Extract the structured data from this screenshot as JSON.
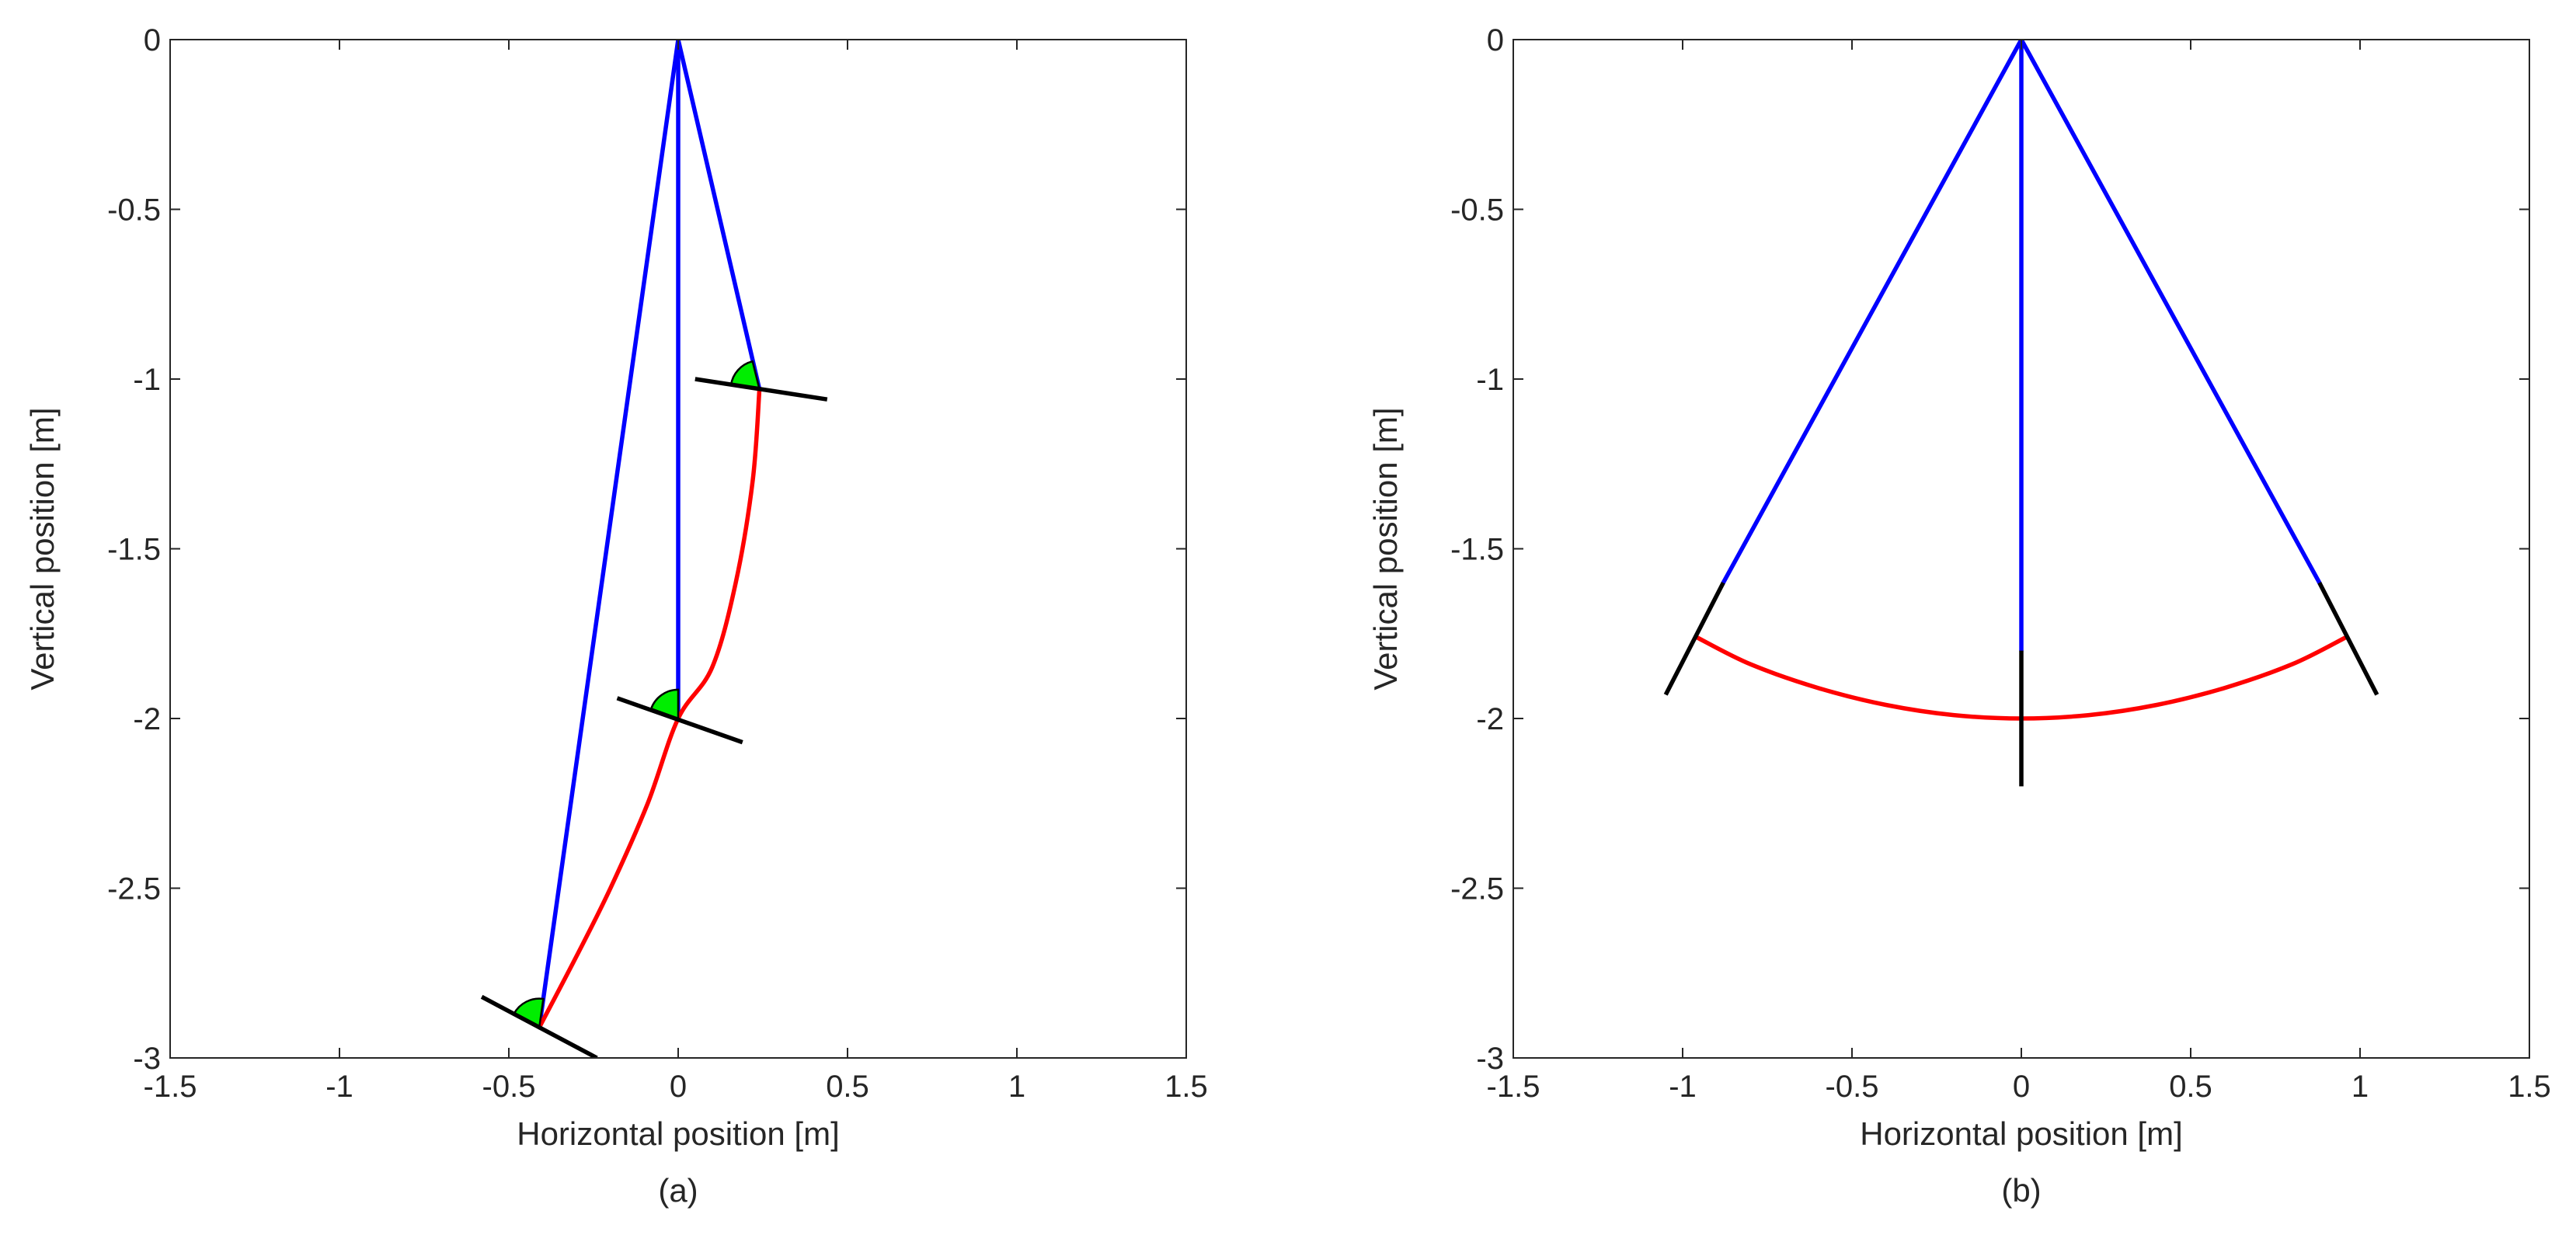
{
  "chart_data": [
    {
      "type": "line",
      "panel_label": "(a)",
      "xlabel": "Horizontal position [m]",
      "ylabel": "Vertical position [m]",
      "xlim": [
        -1.5,
        1.5
      ],
      "ylim": [
        -3,
        0
      ],
      "xticks": [
        -1.5,
        -1,
        -0.5,
        0,
        0.5,
        1,
        1.5
      ],
      "xtick_labels": [
        "-1.5",
        "-1",
        "-0.5",
        "0",
        "0.5",
        "1",
        "1.5"
      ],
      "yticks": [
        0,
        -0.5,
        -1,
        -1.5,
        -2,
        -2.5,
        -3
      ],
      "ytick_labels": [
        "0",
        "-0.5",
        "-1",
        "-1.5",
        "-2",
        "-2.5",
        "-3"
      ],
      "grid": false,
      "colors": {
        "string": "#0000ff",
        "path": "#ff0000",
        "mirror": "#000000",
        "angle": "#00ee00"
      },
      "strings": [
        {
          "name": "string-left",
          "points": [
            [
              0,
              0
            ],
            [
              -0.41,
              -2.91
            ]
          ]
        },
        {
          "name": "string-center",
          "points": [
            [
              0,
              0
            ],
            [
              0,
              -2.0
            ]
          ]
        },
        {
          "name": "string-right",
          "points": [
            [
              0,
              0
            ],
            [
              0.24,
              -1.03
            ]
          ]
        }
      ],
      "path": {
        "name": "red-path",
        "points": [
          [
            0.24,
            -1.03
          ],
          [
            0.22,
            -1.3
          ],
          [
            0.17,
            -1.6
          ],
          [
            0.1,
            -1.85
          ],
          [
            0,
            -2.0
          ],
          [
            -0.09,
            -2.25
          ],
          [
            -0.2,
            -2.5
          ],
          [
            -0.3,
            -2.7
          ],
          [
            -0.41,
            -2.91
          ]
        ]
      },
      "mirrors": [
        {
          "name": "mirror-top",
          "points": [
            [
              0.05,
              -1.0
            ],
            [
              0.44,
              -1.06
            ]
          ]
        },
        {
          "name": "mirror-middle",
          "points": [
            [
              -0.18,
              -1.94
            ],
            [
              0.19,
              -2.07
            ]
          ]
        },
        {
          "name": "mirror-bottom",
          "points": [
            [
              -0.58,
              -2.82
            ],
            [
              -0.24,
              -3.0
            ]
          ]
        }
      ],
      "angle_markers": [
        {
          "name": "angle-marker-top",
          "center": [
            0.24,
            -1.03
          ],
          "radius": 0.085,
          "start_deg": 104,
          "end_deg": 172
        },
        {
          "name": "angle-marker-middle",
          "center": [
            0,
            -2.0
          ],
          "radius": 0.085,
          "start_deg": 90,
          "end_deg": 160
        },
        {
          "name": "angle-marker-bottom",
          "center": [
            -0.41,
            -2.91
          ],
          "radius": 0.085,
          "start_deg": 82,
          "end_deg": 152
        }
      ]
    },
    {
      "type": "line",
      "panel_label": "(b)",
      "xlabel": "Horizontal position [m]",
      "ylabel": "Vertical position [m]",
      "xlim": [
        -1.5,
        1.5
      ],
      "ylim": [
        -3,
        0
      ],
      "xticks": [
        -1.5,
        -1,
        -0.5,
        0,
        0.5,
        1,
        1.5
      ],
      "xtick_labels": [
        "-1.5",
        "-1",
        "-0.5",
        "0",
        "0.5",
        "1",
        "1.5"
      ],
      "yticks": [
        0,
        -0.5,
        -1,
        -1.5,
        -2,
        -2.5,
        -3
      ],
      "ytick_labels": [
        "0",
        "-0.5",
        "-1",
        "-1.5",
        "-2",
        "-2.5",
        "-3"
      ],
      "grid": false,
      "colors": {
        "string": "#0000ff",
        "path": "#ff0000",
        "mirror": "#000000"
      },
      "strings": [
        {
          "name": "string-left",
          "points": [
            [
              0,
              0
            ],
            [
              -0.88,
              -1.6
            ]
          ]
        },
        {
          "name": "string-center",
          "points": [
            [
              0,
              0
            ],
            [
              0,
              -1.8
            ]
          ]
        },
        {
          "name": "string-right",
          "points": [
            [
              0,
              0
            ],
            [
              0.88,
              -1.6
            ]
          ]
        }
      ],
      "path": {
        "name": "red-path",
        "points": [
          [
            -0.96,
            -1.76
          ],
          [
            -0.8,
            -1.84
          ],
          [
            -0.6,
            -1.91
          ],
          [
            -0.4,
            -1.96
          ],
          [
            -0.2,
            -1.99
          ],
          [
            0,
            -2.0
          ],
          [
            0.2,
            -1.99
          ],
          [
            0.4,
            -1.96
          ],
          [
            0.6,
            -1.91
          ],
          [
            0.8,
            -1.84
          ],
          [
            0.96,
            -1.76
          ]
        ]
      },
      "mirrors": [
        {
          "name": "mirror-left",
          "points": [
            [
              -0.88,
              -1.6
            ],
            [
              -1.05,
              -1.93
            ]
          ]
        },
        {
          "name": "mirror-center",
          "points": [
            [
              0,
              -1.8
            ],
            [
              0,
              -2.2
            ]
          ]
        },
        {
          "name": "mirror-right",
          "points": [
            [
              0.88,
              -1.6
            ],
            [
              1.05,
              -1.93
            ]
          ]
        }
      ],
      "angle_markers": []
    }
  ]
}
